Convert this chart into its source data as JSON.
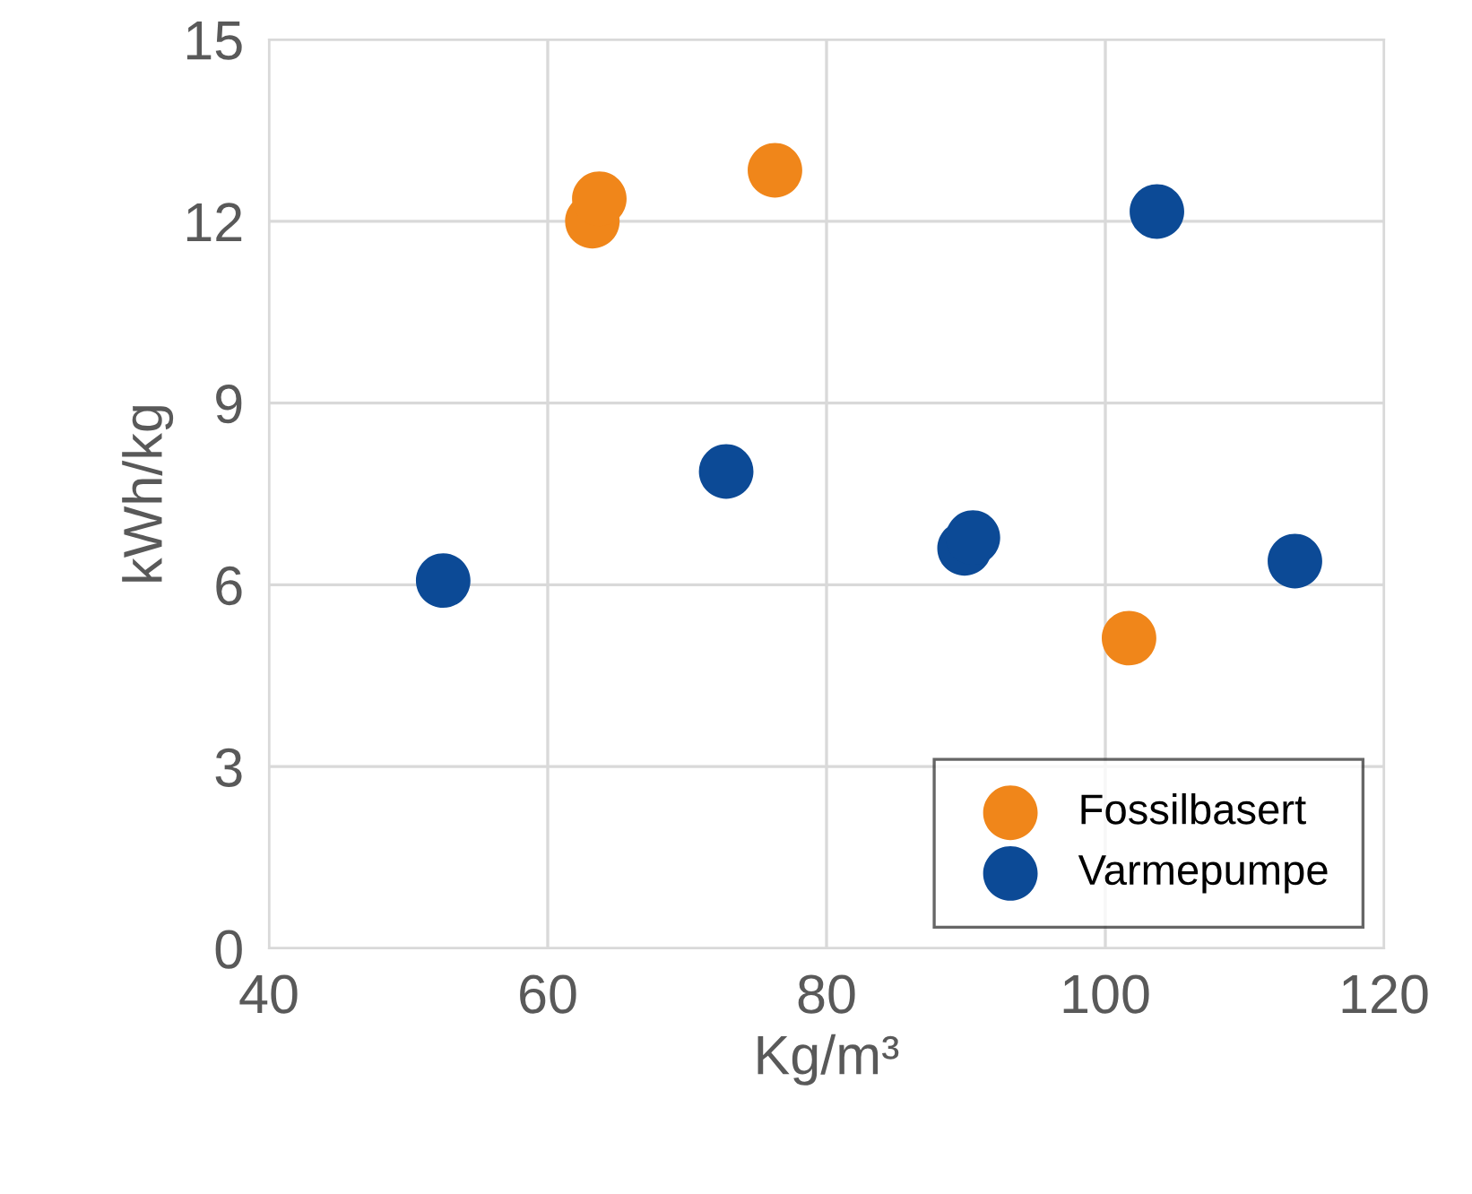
{
  "chart_data": {
    "type": "scatter",
    "xlabel": "Kg/m³",
    "ylabel": "kWh/kg",
    "xlim": [
      40,
      120
    ],
    "xticks": [
      40,
      60,
      80,
      100,
      120
    ],
    "ylim": [
      0,
      15
    ],
    "yticks": [
      0,
      3,
      6,
      9,
      12,
      15
    ],
    "grid": true,
    "legend": "bottom right",
    "marker": "circle",
    "series": [
      {
        "name": "Fossilbasert",
        "color": "#f0861a",
        "x": [
          63.2,
          63.7,
          76.3,
          101.7
        ],
        "values": [
          12.0,
          12.37,
          12.84,
          5.12
        ]
      },
      {
        "name": "Varmepumpe",
        "color": "#0c4a96",
        "x": [
          52.5,
          72.8,
          89.9,
          90.5,
          103.7,
          113.6
        ],
        "values": [
          6.07,
          7.87,
          6.6,
          6.78,
          12.16,
          6.39
        ]
      }
    ]
  }
}
